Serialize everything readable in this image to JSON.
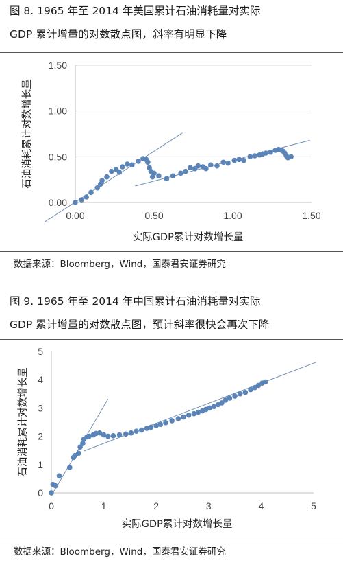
{
  "figure1": {
    "title_line1": "图 8. 1965 年至 2014 年美国累计石油消耗量对实际",
    "title_line2": "GDP 累计增量的对数散点图，斜率有明显下降",
    "source": "数据来源：Bloomberg，Wind，国泰君安证券研究"
  },
  "figure2": {
    "title_line1": "图 9. 1965 年至 2014 年中国累计石油消耗量对实际",
    "title_line2": "GDP 累计增量的对数散点图，预计斜率很快会再次下降",
    "source": "数据来源：Bloomberg，Wind，国泰君安证券研究"
  },
  "chart_data": [
    {
      "type": "scatter",
      "title": "",
      "xlabel": "实际GDP累计对数增长量",
      "ylabel": "石油消耗累计对数增长量",
      "xlim": [
        0,
        1.5
      ],
      "ylim": [
        0,
        1.5
      ],
      "xticks": [
        "0.00",
        "0.50",
        "1.00",
        "1.50"
      ],
      "yticks": [
        "0.00",
        "0.50",
        "1.00",
        "1.50"
      ],
      "marker_color": "#5b84b9",
      "grid": "horizontal",
      "series": [
        {
          "x": [
            0.0,
            0.04,
            0.07,
            0.1,
            0.14,
            0.16,
            0.17,
            0.2,
            0.23,
            0.26,
            0.28,
            0.3,
            0.33,
            0.36,
            0.4,
            0.43,
            0.45,
            0.46,
            0.47,
            0.48,
            0.49,
            0.5,
            0.53,
            0.58,
            0.62,
            0.67,
            0.7,
            0.73,
            0.76,
            0.78,
            0.81,
            0.83,
            0.86,
            0.9,
            0.94,
            0.97,
            1.01,
            1.04,
            1.07,
            1.11,
            1.14,
            1.17,
            1.19,
            1.21,
            1.24,
            1.27,
            1.29,
            1.31,
            1.32,
            1.33,
            1.34,
            1.35,
            1.37
          ],
          "y": [
            0.0,
            0.03,
            0.06,
            0.11,
            0.16,
            0.2,
            0.24,
            0.28,
            0.34,
            0.36,
            0.33,
            0.39,
            0.42,
            0.41,
            0.45,
            0.48,
            0.47,
            0.44,
            0.38,
            0.34,
            0.28,
            0.32,
            0.29,
            0.26,
            0.29,
            0.32,
            0.34,
            0.38,
            0.37,
            0.4,
            0.39,
            0.37,
            0.41,
            0.4,
            0.44,
            0.43,
            0.46,
            0.47,
            0.46,
            0.5,
            0.51,
            0.52,
            0.53,
            0.54,
            0.55,
            0.57,
            0.58,
            0.57,
            0.56,
            0.54,
            0.51,
            0.49,
            0.5
          ]
        }
      ],
      "trendlines": [
        {
          "from": [
            -0.22,
            -0.24
          ],
          "to": [
            0.68,
            0.76
          ]
        },
        {
          "from": [
            0.38,
            0.18
          ],
          "to": [
            1.49,
            0.68
          ]
        }
      ]
    },
    {
      "type": "scatter",
      "title": "",
      "xlabel": "实际GDP累计对数增长量",
      "ylabel": "石油消耗累计对数增长量",
      "xlim": [
        0,
        5
      ],
      "ylim": [
        0,
        5
      ],
      "xticks": [
        "0",
        "1",
        "2",
        "3",
        "4",
        "5"
      ],
      "yticks": [
        "0",
        "1",
        "2",
        "3",
        "4",
        "5"
      ],
      "marker_color": "#5b84b9",
      "grid": "none",
      "series": [
        {
          "x": [
            0.0,
            0.03,
            0.08,
            0.15,
            0.35,
            0.42,
            0.45,
            0.52,
            0.55,
            0.6,
            0.62,
            0.68,
            0.72,
            0.8,
            0.85,
            0.92,
            1.0,
            1.08,
            1.18,
            1.3,
            1.42,
            1.52,
            1.62,
            1.72,
            1.82,
            1.9,
            2.0,
            2.08,
            2.18,
            2.3,
            2.42,
            2.52,
            2.62,
            2.72,
            2.8,
            2.88,
            2.95,
            3.02,
            3.1,
            3.18,
            3.25,
            3.32,
            3.4,
            3.5,
            3.6,
            3.7,
            3.8,
            3.88,
            3.95,
            4.02,
            4.08
          ],
          "y": [
            0.0,
            0.3,
            0.25,
            0.6,
            0.9,
            1.25,
            1.32,
            1.4,
            1.62,
            1.75,
            1.9,
            1.98,
            2.0,
            2.05,
            2.1,
            2.12,
            2.05,
            2.0,
            2.02,
            2.05,
            2.08,
            2.12,
            2.18,
            2.22,
            2.28,
            2.32,
            2.38,
            2.42,
            2.48,
            2.55,
            2.62,
            2.68,
            2.75,
            2.8,
            2.85,
            2.9,
            2.95,
            3.0,
            3.05,
            3.12,
            3.18,
            3.28,
            3.35,
            3.42,
            3.5,
            3.55,
            3.65,
            3.72,
            3.8,
            3.88,
            3.92
          ]
        }
      ],
      "trendlines": [
        {
          "from": [
            0.0,
            -0.1
          ],
          "to": [
            1.08,
            3.32
          ]
        },
        {
          "from": [
            0.62,
            1.48
          ],
          "to": [
            5.05,
            4.62
          ]
        }
      ]
    }
  ]
}
